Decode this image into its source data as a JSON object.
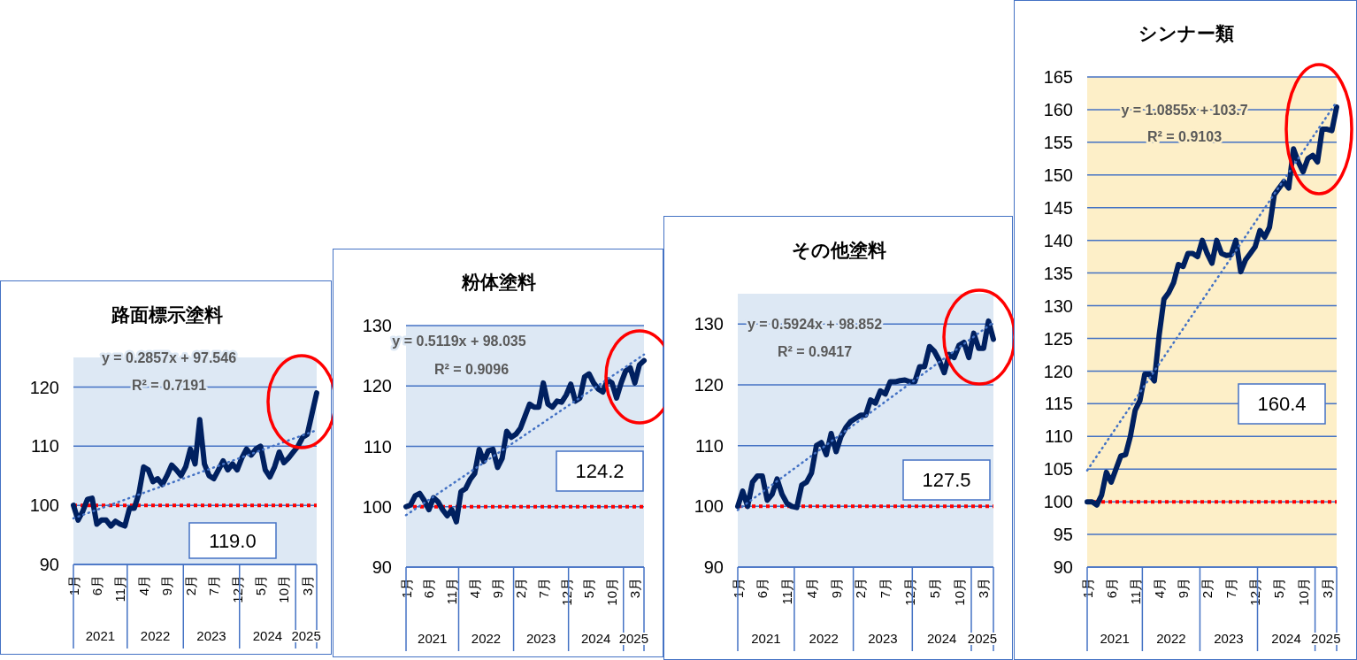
{
  "chart_data": [
    {
      "type": "line",
      "title": "路面標示塗料",
      "categories": [
        "1月",
        null,
        null,
        null,
        null,
        "6月",
        null,
        null,
        null,
        null,
        "11月",
        null,
        null,
        null,
        null,
        "4月",
        null,
        null,
        null,
        null,
        "9月",
        null,
        null,
        null,
        null,
        "2月",
        null,
        null,
        null,
        null,
        "7月",
        null,
        null,
        null,
        null,
        "12月",
        null,
        null,
        null,
        null,
        "5月",
        null,
        null,
        null,
        null,
        "10月",
        null,
        null,
        null,
        null,
        "3月",
        null,
        null
      ],
      "series": [
        {
          "color": "#002060",
          "values": [
            100,
            97.5,
            99,
            101,
            101.2,
            96.8,
            97.5,
            97.5,
            96.5,
            97.3,
            96.8,
            96.5,
            99.5,
            99.5,
            102,
            106.5,
            106,
            104,
            104.5,
            103.5,
            105,
            106.8,
            106,
            105,
            106.5,
            109.5,
            107,
            114.5,
            107,
            105,
            104.5,
            106,
            107.5,
            106,
            107,
            106,
            108,
            109.5,
            108.5,
            109.5,
            110,
            106,
            104.8,
            106.5,
            109,
            107.2,
            108,
            109,
            110,
            111.5,
            112,
            115.5,
            119.0
          ]
        },
        {
          "type": "line",
          "color": "#4472c4",
          "line_style": "dotted",
          "values": [
            97.8,
            null,
            null,
            null,
            null,
            null,
            null,
            null,
            null,
            null,
            null,
            null,
            null,
            null,
            null,
            null,
            null,
            null,
            null,
            null,
            null,
            null,
            null,
            null,
            null,
            null,
            null,
            null,
            null,
            null,
            null,
            null,
            null,
            null,
            null,
            null,
            null,
            null,
            null,
            null,
            null,
            null,
            null,
            null,
            null,
            null,
            null,
            null,
            null,
            null,
            null,
            null,
            112.7
          ]
        }
      ],
      "ylim": [
        90,
        125
      ],
      "yticks": [
        90,
        100,
        110,
        120
      ],
      "grid": "y",
      "marker": "none",
      "ref_lines": [
        {
          "axis": "y",
          "value": 100,
          "color": "#ff0000",
          "line_style": "dotted"
        }
      ],
      "bands": [
        {
          "axis": "y",
          "from": 90,
          "to": 125,
          "color": "#dde8f4"
        }
      ],
      "annotations": [
        "y = 0.2857x + 97.546",
        "R² = 0.7191",
        "119.0",
        "2021",
        "2022",
        "2023",
        "2024",
        "2025"
      ]
    },
    {
      "type": "line",
      "title": "粉体塗料",
      "categories": [
        "1月",
        null,
        null,
        null,
        null,
        "6月",
        null,
        null,
        null,
        null,
        "11月",
        null,
        null,
        null,
        null,
        "4月",
        null,
        null,
        null,
        null,
        "9月",
        null,
        null,
        null,
        null,
        "2月",
        null,
        null,
        null,
        null,
        "7月",
        null,
        null,
        null,
        null,
        "12月",
        null,
        null,
        null,
        null,
        "5月",
        null,
        null,
        null,
        null,
        "10月",
        null,
        null,
        null,
        null,
        "3月",
        null,
        null
      ],
      "series": [
        {
          "color": "#002060",
          "values": [
            100,
            100.3,
            101.8,
            102.2,
            101,
            99.5,
            101.5,
            100.8,
            99.5,
            98.5,
            99.5,
            97.5,
            102.5,
            103,
            104.5,
            105.5,
            109.5,
            107.5,
            109.3,
            109.5,
            106.5,
            108,
            112.5,
            111.5,
            112,
            113,
            115,
            117,
            116.5,
            116.5,
            120.5,
            117,
            116.5,
            117.5,
            117.3,
            118.5,
            120.3,
            117.5,
            118,
            121.5,
            122,
            120.5,
            119.5,
            119,
            121,
            120.5,
            118,
            120.5,
            122.5,
            123,
            120.5,
            123.5,
            124.2
          ]
        },
        {
          "type": "line",
          "color": "#4472c4",
          "line_style": "dotted",
          "values": [
            98.6,
            null,
            null,
            null,
            null,
            null,
            null,
            null,
            null,
            null,
            null,
            null,
            null,
            null,
            null,
            null,
            null,
            null,
            null,
            null,
            null,
            null,
            null,
            null,
            null,
            null,
            null,
            null,
            null,
            null,
            null,
            null,
            null,
            null,
            null,
            null,
            null,
            null,
            null,
            null,
            null,
            null,
            null,
            null,
            null,
            null,
            null,
            null,
            null,
            null,
            null,
            null,
            125.2
          ]
        }
      ],
      "ylim": [
        90,
        130
      ],
      "yticks": [
        90,
        100,
        110,
        120,
        130
      ],
      "grid": "y",
      "marker": "none",
      "ref_lines": [
        {
          "axis": "y",
          "value": 100,
          "color": "#ff0000",
          "line_style": "dotted"
        }
      ],
      "bands": [
        {
          "axis": "y",
          "from": 90,
          "to": 130,
          "color": "#dde8f4"
        }
      ],
      "annotations": [
        "y = 0.5119x + 98.035",
        "R² = 0.9096",
        "124.2",
        "2021",
        "2022",
        "2023",
        "2024",
        "2025"
      ]
    },
    {
      "type": "line",
      "title": "その他塗料",
      "categories": [
        "1月",
        null,
        null,
        null,
        null,
        "6月",
        null,
        null,
        null,
        null,
        "11月",
        null,
        null,
        null,
        null,
        "4月",
        null,
        null,
        null,
        null,
        "9月",
        null,
        null,
        null,
        null,
        "2月",
        null,
        null,
        null,
        null,
        "7月",
        null,
        null,
        null,
        null,
        "12月",
        null,
        null,
        null,
        null,
        "5月",
        null,
        null,
        null,
        null,
        "10月",
        null,
        null,
        null,
        null,
        "3月",
        null,
        null
      ],
      "series": [
        {
          "color": "#002060",
          "values": [
            100,
            102.5,
            100,
            104,
            105,
            105,
            101,
            102,
            104.5,
            102,
            100.5,
            100,
            99.8,
            103.5,
            104,
            105.5,
            110,
            110.5,
            108.5,
            112,
            109,
            111.5,
            113,
            114,
            114.5,
            115,
            115,
            117.5,
            117,
            119,
            118.5,
            120.5,
            120.5,
            120.7,
            120.8,
            120.5,
            120.5,
            123,
            123,
            126.3,
            125.5,
            124,
            122,
            125,
            124.5,
            126.5,
            127,
            124.5,
            128.5,
            126,
            126,
            130.5,
            127.5
          ]
        },
        {
          "type": "line",
          "color": "#4472c4",
          "line_style": "dotted",
          "values": [
            99.4,
            null,
            null,
            null,
            null,
            null,
            null,
            null,
            null,
            null,
            null,
            null,
            null,
            null,
            null,
            null,
            null,
            null,
            null,
            null,
            null,
            null,
            null,
            null,
            null,
            null,
            null,
            null,
            null,
            null,
            null,
            null,
            null,
            null,
            null,
            null,
            null,
            null,
            null,
            null,
            null,
            null,
            null,
            null,
            null,
            null,
            null,
            null,
            null,
            null,
            null,
            null,
            130.3
          ]
        }
      ],
      "ylim": [
        90,
        135
      ],
      "yticks": [
        90,
        100,
        110,
        120,
        130
      ],
      "grid": "y",
      "marker": "none",
      "ref_lines": [
        {
          "axis": "y",
          "value": 100,
          "color": "#ff0000",
          "line_style": "dotted"
        }
      ],
      "bands": [
        {
          "axis": "y",
          "from": 90,
          "to": 135,
          "color": "#dde8f4"
        }
      ],
      "annotations": [
        "y = 0.5924x + 98.852",
        "R² = 0.9417",
        "127.5",
        "2021",
        "2022",
        "2023",
        "2024",
        "2025"
      ]
    },
    {
      "type": "line",
      "title": "シンナー類",
      "categories": [
        "1月",
        null,
        null,
        null,
        null,
        "6月",
        null,
        null,
        null,
        null,
        "11月",
        null,
        null,
        null,
        null,
        "4月",
        null,
        null,
        null,
        null,
        "9月",
        null,
        null,
        null,
        null,
        "2月",
        null,
        null,
        null,
        null,
        "7月",
        null,
        null,
        null,
        null,
        "12月",
        null,
        null,
        null,
        null,
        "5月",
        null,
        null,
        null,
        null,
        "10月",
        null,
        null,
        null,
        null,
        "3月",
        null,
        null
      ],
      "series": [
        {
          "color": "#002060",
          "values": [
            100,
            100,
            99.5,
            101,
            104.5,
            103,
            105,
            107,
            107.2,
            110,
            114,
            115.5,
            119.5,
            119.5,
            118.5,
            125.5,
            131,
            132,
            133.5,
            136.3,
            136,
            138,
            138,
            137.5,
            140,
            138,
            136.5,
            140,
            138,
            137.7,
            137.8,
            140,
            135.2,
            137,
            138,
            139,
            141.5,
            140.5,
            142,
            147,
            148,
            149,
            148,
            154,
            152,
            150.5,
            152.5,
            153,
            152,
            157,
            157,
            156.8,
            160.4
          ]
        },
        {
          "type": "line",
          "color": "#4472c4",
          "line_style": "dotted",
          "values": [
            104.8,
            null,
            null,
            null,
            null,
            null,
            null,
            null,
            null,
            null,
            null,
            null,
            null,
            null,
            null,
            null,
            null,
            null,
            null,
            null,
            null,
            null,
            null,
            null,
            null,
            null,
            null,
            null,
            null,
            null,
            null,
            null,
            null,
            null,
            null,
            null,
            null,
            null,
            null,
            null,
            null,
            null,
            null,
            null,
            null,
            null,
            null,
            null,
            null,
            null,
            null,
            null,
            161.2
          ]
        }
      ],
      "ylim": [
        90,
        165
      ],
      "yticks": [
        90,
        95,
        100,
        105,
        110,
        115,
        120,
        125,
        130,
        135,
        140,
        145,
        150,
        155,
        160,
        165
      ],
      "grid": "y",
      "marker": "none",
      "ref_lines": [
        {
          "axis": "y",
          "value": 100,
          "color": "#ff0000",
          "line_style": "dotted"
        }
      ],
      "bands": [
        {
          "axis": "y",
          "from": 90,
          "to": 165,
          "color": "#fdefc8"
        }
      ],
      "annotations": [
        "y = 1.0855x + 103.7",
        "R² = 0.9103",
        "160.4",
        "2021",
        "2022",
        "2023",
        "2024",
        "2025"
      ]
    }
  ]
}
